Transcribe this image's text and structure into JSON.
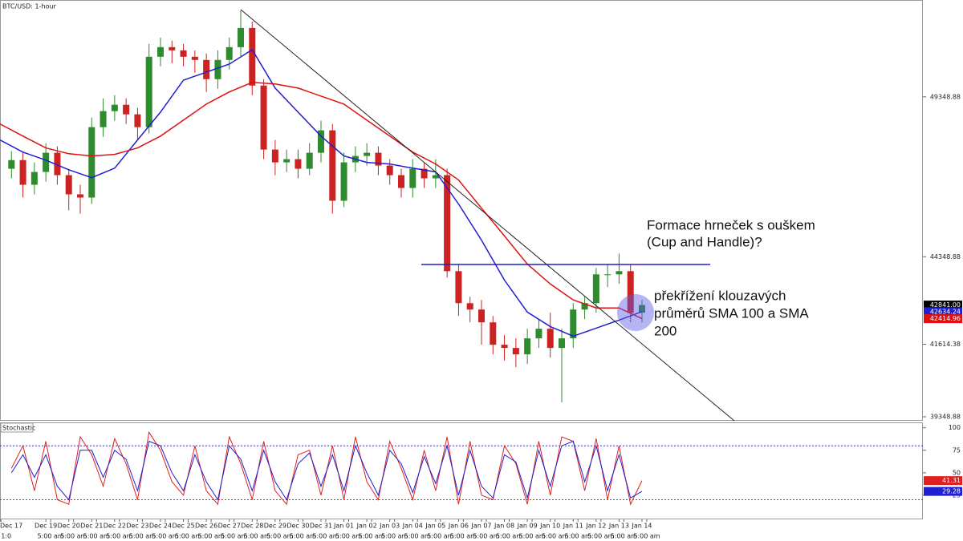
{
  "chart_data": [
    {
      "type": "candlestick",
      "title": "BTC/USD: 1-hour",
      "annotations": [
        [
          "Formace hrneček s ouškem",
          "(Cup and Handle)?"
        ],
        [
          "překřížení klouzavých",
          "průměrů SMA 100 a SMA",
          "200"
        ]
      ],
      "xlim": [
        0,
        966
      ],
      "ylim": [
        39223.88,
        52373.88
      ],
      "yticks": [
        39348.88,
        41614.38,
        44348.88,
        49348.88
      ],
      "xticks": [
        {
          "value": 0,
          "label": "Dec 17"
        },
        {
          "value": 48,
          "label": "Dec 19"
        },
        {
          "value": 72,
          "label": "Dec 20"
        },
        {
          "value": 96,
          "label": "Dec 21"
        },
        {
          "value": 120,
          "label": "Dec 22"
        },
        {
          "value": 144,
          "label": "Dec 23"
        },
        {
          "value": 168,
          "label": "Dec 24"
        },
        {
          "value": 192,
          "label": "Dec 25"
        },
        {
          "value": 216,
          "label": "Dec 26"
        },
        {
          "value": 240,
          "label": "Dec 27"
        },
        {
          "value": 264,
          "label": "Dec 28"
        },
        {
          "value": 288,
          "label": "Dec 29"
        },
        {
          "value": 312,
          "label": "Dec 30"
        },
        {
          "value": 336,
          "label": "Dec 31"
        },
        {
          "value": 360,
          "label": "Jan 01"
        },
        {
          "value": 384,
          "label": "Jan 02"
        },
        {
          "value": 408,
          "label": "Jan 03"
        },
        {
          "value": 432,
          "label": "Jan 04"
        },
        {
          "value": 456,
          "label": "Jan 05"
        },
        {
          "value": 480,
          "label": "Jan 06"
        },
        {
          "value": 504,
          "label": "Jan 07"
        },
        {
          "value": 528,
          "label": "Jan 08"
        },
        {
          "value": 552,
          "label": "Jan 09"
        },
        {
          "value": 576,
          "label": "Jan 10"
        },
        {
          "value": 600,
          "label": "Jan 11"
        },
        {
          "value": 624,
          "label": "Jan 12"
        },
        {
          "value": 648,
          "label": "Jan 13"
        },
        {
          "value": 672,
          "label": "Jan 14"
        }
      ],
      "up_color": "#2e8b2e",
      "down_color": "#cc2222",
      "x": [
        12,
        24,
        36,
        48,
        60,
        72,
        84,
        96,
        108,
        120,
        132,
        144,
        156,
        168,
        180,
        192,
        204,
        216,
        228,
        240,
        252,
        264,
        276,
        288,
        300,
        312,
        324,
        336,
        348,
        360,
        372,
        384,
        396,
        408,
        420,
        432,
        444,
        456,
        468,
        480,
        492,
        504,
        516,
        528,
        540,
        552,
        564,
        576,
        588,
        600,
        612,
        624,
        636,
        648,
        660,
        672
      ],
      "open": [
        47100,
        47370,
        46600,
        47000,
        47600,
        46900,
        46300,
        46200,
        48400,
        48900,
        49100,
        48800,
        48400,
        50600,
        50900,
        50800,
        50600,
        50500,
        49900,
        50500,
        50900,
        51500,
        49700,
        47700,
        47300,
        47400,
        47100,
        47600,
        48300,
        46100,
        47300,
        47500,
        47600,
        47200,
        46900,
        46500,
        47100,
        46800,
        46900,
        43900,
        42900,
        42700,
        42300,
        41600,
        41500,
        41300,
        41800,
        42100,
        41500,
        41800,
        42700,
        42900,
        43800,
        43800,
        43900,
        42600
      ],
      "high": [
        47650,
        47600,
        47300,
        47900,
        47800,
        47100,
        46600,
        48700,
        49300,
        49400,
        49300,
        49000,
        51000,
        51200,
        51100,
        51000,
        50800,
        50700,
        50800,
        51200,
        52050,
        51700,
        49900,
        48000,
        47700,
        47700,
        47900,
        48600,
        48500,
        47600,
        47800,
        47900,
        47800,
        47400,
        47100,
        47400,
        47300,
        47400,
        47100,
        44100,
        43100,
        43000,
        42500,
        41900,
        41800,
        42100,
        42400,
        42600,
        42100,
        42900,
        43100,
        44000,
        44100,
        44450,
        44100,
        43000
      ],
      "low": [
        46800,
        46200,
        46300,
        46700,
        46600,
        45800,
        45700,
        46000,
        48100,
        48600,
        48500,
        48000,
        48200,
        50300,
        50400,
        50300,
        50100,
        49500,
        49600,
        50200,
        50600,
        49400,
        47400,
        46900,
        47000,
        46800,
        46900,
        47300,
        45700,
        45900,
        47000,
        47200,
        46900,
        46600,
        46200,
        46200,
        46500,
        46500,
        43700,
        42500,
        42300,
        41600,
        41300,
        41100,
        40900,
        41000,
        41500,
        41200,
        39800,
        41500,
        42400,
        42600,
        43400,
        43500,
        42300,
        42300
      ],
      "close": [
        47370,
        46600,
        47000,
        47600,
        46900,
        46300,
        46200,
        48400,
        48900,
        49100,
        48800,
        48400,
        50600,
        50900,
        50800,
        50600,
        50500,
        49900,
        50500,
        50900,
        51500,
        49700,
        47700,
        47300,
        47400,
        47100,
        47600,
        48300,
        46100,
        47300,
        47500,
        47600,
        47200,
        46900,
        46500,
        47100,
        46800,
        46900,
        43900,
        42900,
        42700,
        42300,
        41600,
        41500,
        41300,
        41800,
        42100,
        41500,
        41800,
        42700,
        42900,
        43800,
        43800,
        43900,
        42600,
        42841
      ],
      "overlay_x": [
        0,
        24,
        48,
        72,
        96,
        120,
        144,
        168,
        192,
        216,
        240,
        264,
        288,
        312,
        336,
        360,
        384,
        408,
        432,
        456,
        480,
        504,
        528,
        552,
        576,
        600,
        624,
        648,
        672
      ],
      "overlays": [
        {
          "color": "#1f1fd0",
          "values": [
            48000,
            47620,
            47370,
            47070,
            46820,
            47120,
            48000,
            48870,
            49870,
            50120,
            50370,
            50820,
            49620,
            48870,
            48120,
            47500,
            47300,
            47250,
            47120,
            47000,
            46000,
            44870,
            43620,
            42620,
            42170,
            41870,
            42120,
            42370,
            42634.24
          ]
        },
        {
          "color": "#e01010",
          "values": [
            48500,
            48120,
            47750,
            47570,
            47500,
            47550,
            47750,
            48120,
            48620,
            49120,
            49500,
            49800,
            49750,
            49620,
            49370,
            49120,
            48620,
            48120,
            47620,
            47250,
            46750,
            45870,
            45000,
            44120,
            43500,
            43000,
            42750,
            42750,
            42414.96
          ]
        }
      ],
      "price_labels": [
        {
          "value": 42841,
          "label": "42841.00"
        },
        42634.24,
        42414.96
      ],
      "price_label_colors": [
        "#000000",
        "#1f1fd0",
        "#e01010"
      ]
    },
    {
      "type": "stochastic",
      "title": "Stochastic",
      "xlim": [
        0,
        966
      ],
      "ylim": [
        0,
        106
      ],
      "yticks": [
        25,
        50,
        75,
        100
      ],
      "levels": [
        80,
        20
      ],
      "level_colors": [
        "#3030c0",
        "#e02020"
      ],
      "xticks": [
        {
          "value": 1,
          "label": "1:0"
        },
        {
          "value": 53,
          "label": "5:00 am"
        },
        {
          "value": 77,
          "label": "5:00 am"
        },
        {
          "value": 101,
          "label": "5:00 am"
        },
        {
          "value": 125,
          "label": "5:00 am"
        },
        {
          "value": 149,
          "label": "5:00 am"
        },
        {
          "value": 173,
          "label": "5:00 am"
        },
        {
          "value": 197,
          "label": "5:00 am"
        },
        {
          "value": 221,
          "label": "5:00 am"
        },
        {
          "value": 245,
          "label": "5:00 am"
        },
        {
          "value": 269,
          "label": "5:00 am"
        },
        {
          "value": 293,
          "label": "5:00 am"
        },
        {
          "value": 317,
          "label": "5:00 am"
        },
        {
          "value": 341,
          "label": "5:00 am"
        },
        {
          "value": 365,
          "label": "5:00 am"
        },
        {
          "value": 389,
          "label": "5:00 am"
        },
        {
          "value": 413,
          "label": "5:00 am"
        },
        {
          "value": 437,
          "label": "5:00 am"
        },
        {
          "value": 461,
          "label": "5:00 am"
        },
        {
          "value": 485,
          "label": "5:00 am"
        },
        {
          "value": 509,
          "label": "5:00 am"
        },
        {
          "value": 533,
          "label": "5:00 am"
        },
        {
          "value": 557,
          "label": "5:00 am"
        },
        {
          "value": 581,
          "label": "5:00 am"
        },
        {
          "value": 605,
          "label": "5:00 am"
        },
        {
          "value": 629,
          "label": "5:00 am"
        },
        {
          "value": 653,
          "label": "5:00 am"
        },
        {
          "value": 677,
          "label": "5:00 am"
        }
      ],
      "x": [
        12,
        24,
        36,
        48,
        60,
        72,
        84,
        96,
        108,
        120,
        132,
        144,
        156,
        168,
        180,
        192,
        204,
        216,
        228,
        240,
        252,
        264,
        276,
        288,
        300,
        312,
        324,
        336,
        348,
        360,
        372,
        384,
        396,
        408,
        420,
        432,
        444,
        456,
        468,
        480,
        492,
        504,
        516,
        528,
        540,
        552,
        564,
        576,
        588,
        600,
        612,
        624,
        636,
        648,
        660,
        672
      ],
      "series": [
        {
          "color": "#e02020",
          "values": [
            55,
            80,
            30,
            85,
            20,
            15,
            90,
            70,
            35,
            88,
            60,
            20,
            95,
            75,
            40,
            25,
            80,
            30,
            15,
            90,
            60,
            20,
            85,
            30,
            15,
            70,
            75,
            25,
            80,
            20,
            90,
            40,
            20,
            85,
            55,
            20,
            75,
            30,
            90,
            15,
            85,
            25,
            20,
            80,
            60,
            15,
            85,
            25,
            90,
            85,
            30,
            88,
            20,
            80,
            15,
            41.31
          ]
        },
        {
          "color": "#2020d0",
          "values": [
            50,
            70,
            45,
            70,
            35,
            20,
            75,
            75,
            45,
            75,
            65,
            30,
            85,
            80,
            50,
            30,
            70,
            40,
            20,
            80,
            65,
            30,
            75,
            40,
            20,
            60,
            72,
            35,
            70,
            30,
            80,
            50,
            25,
            75,
            60,
            28,
            68,
            38,
            80,
            25,
            75,
            35,
            22,
            70,
            62,
            22,
            75,
            35,
            80,
            85,
            40,
            80,
            30,
            70,
            22,
            29.28
          ]
        }
      ]
    }
  ]
}
